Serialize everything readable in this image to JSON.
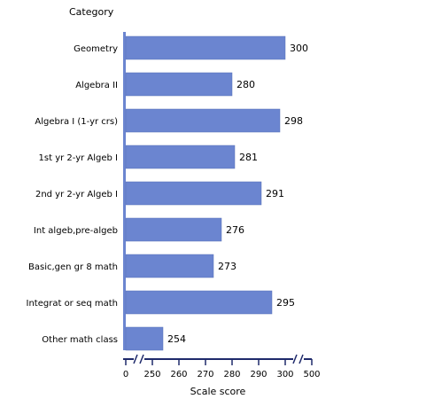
{
  "chart_data": {
    "type": "bar",
    "orientation": "horizontal",
    "title": "",
    "category_axis_title": "Category",
    "xlabel": "Scale score",
    "categories": [
      "Geometry",
      "Algebra II",
      "Algebra I (1-yr crs)",
      "1st yr 2-yr Algeb I",
      "2nd yr 2-yr Algeb I",
      "Int algeb,pre-algeb",
      "Basic,gen gr 8 math",
      "Integrat or seq math",
      "Other math class"
    ],
    "values": [
      300,
      280,
      298,
      281,
      291,
      276,
      273,
      295,
      254
    ],
    "xticks": [
      "0",
      "250",
      "260",
      "270",
      "280",
      "290",
      "300",
      "500"
    ],
    "xlim": [
      240,
      310
    ],
    "axis_breaks": [
      "0–250",
      "300–500"
    ],
    "grid": false,
    "colors": {
      "bar": "#6b85d0",
      "bar_edge": "#5a72b8",
      "axis": "#1f2a6b"
    }
  }
}
